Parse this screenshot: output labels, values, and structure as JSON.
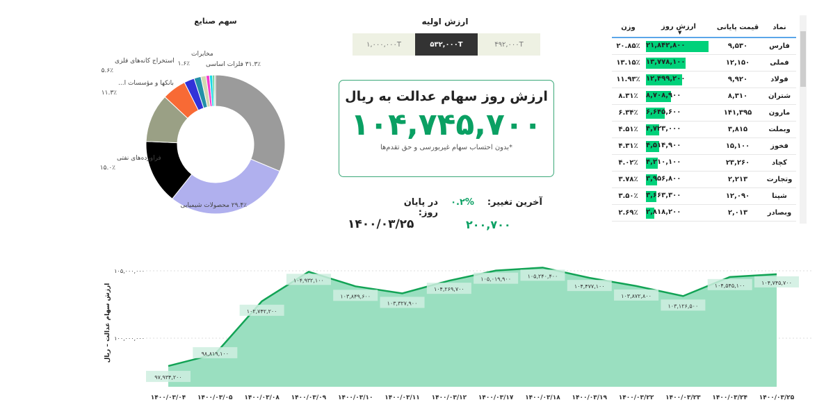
{
  "donut": {
    "title": "سهم صنایع",
    "slices": [
      {
        "label": "فلزات اساسی",
        "pct_label": "۳۱.۳٪",
        "value": 31.3,
        "color": "#9b9b9b"
      },
      {
        "label": "محصولات شیمیایی",
        "pct_label": "۲۹.۴٪",
        "value": 29.4,
        "color": "#b0b0ee"
      },
      {
        "label": "فراورده‌های نفتی",
        "pct_label": "۱۵.۰٪",
        "value": 15.0,
        "color": "#000000"
      },
      {
        "label": "بانکها و مؤسسات ا...",
        "pct_label": "۱۱.۳٪",
        "value": 11.3,
        "color": "#9aa085"
      },
      {
        "label": "استخراج کانه‌های فلزی",
        "pct_label": "۵.۶٪",
        "value": 5.6,
        "color": "#f86a35"
      },
      {
        "value": 2.4,
        "color": "#3232d8"
      },
      {
        "label": "مخابرات",
        "pct_label": "۱.۶٪",
        "value": 1.6,
        "color": "#2390a8"
      },
      {
        "value": 1.2,
        "color": "#d2d8b0"
      },
      {
        "value": 0.8,
        "color": "#f33ad0"
      },
      {
        "value": 0.7,
        "color": "#19d6e6"
      },
      {
        "value": 0.4,
        "color": "#2bc56e"
      },
      {
        "value": 0.3,
        "color": "#aaaaaa"
      }
    ]
  },
  "initial": {
    "title": "ارزش اولیه",
    "options": [
      "۴۹۲,۰۰۰T",
      "۵۳۲,۰۰۰T",
      "۱,۰۰۰,۰۰۰T"
    ],
    "selected": 1
  },
  "card": {
    "title": "ارزش روز سهام عدالت به ریال",
    "value": "۱۰۴,۷۴۵,۷۰۰",
    "note": "*بدون احتساب سهام غیربورسی و حق تقدم‌ها"
  },
  "info": {
    "change_label": "آخرین تغییر:",
    "change_pct": "۰.۲%",
    "change_value": "۲۰۰,۷۰۰",
    "date_label": "در پایان روز:",
    "date": "۱۴۰۰/۰۳/۲۵"
  },
  "table": {
    "headers": [
      "نماد",
      "قیمت پایانی",
      "ارزش روز",
      "وزن"
    ],
    "sort_column": "ارزش روز",
    "rows": [
      [
        "فارس",
        "۹,۵۳۰",
        "۲۱,۸۴۲,۸۰۰",
        "۲۰.۸۵٪",
        21842800
      ],
      [
        "فملی",
        "۱۲,۱۵۰",
        "۱۳,۷۷۸,۱۰۰",
        "۱۳.۱۵٪",
        13778100
      ],
      [
        "فولاد",
        "۹,۹۲۰",
        "۱۲,۴۹۹,۲۰۰",
        "۱۱.۹۳٪",
        12499200
      ],
      [
        "شتران",
        "۸,۳۱۰",
        "۸,۷۰۸,۹۰۰",
        "۸.۳۱٪",
        8708900
      ],
      [
        "مارون",
        "۱۴۱,۳۹۵",
        "۶,۶۴۵,۶۰۰",
        "۶.۳۴٪",
        6645600
      ],
      [
        "وبملت",
        "۳,۸۱۵",
        "۴,۷۲۳,۰۰۰",
        "۴.۵۱٪",
        4723000
      ],
      [
        "فخوز",
        "۱۵,۱۰۰",
        "۴,۵۱۴,۹۰۰",
        "۴.۳۱٪",
        4514900
      ],
      [
        "کچاد",
        "۲۳,۲۶۰",
        "۴,۲۱۰,۱۰۰",
        "۴.۰۲٪",
        4210100
      ],
      [
        "وتجارت",
        "۲,۲۱۳",
        "۳,۹۵۶,۸۰۰",
        "۳.۷۸٪",
        3956800
      ],
      [
        "شپنا",
        "۱۲,۰۹۰",
        "۳,۶۶۳,۳۰۰",
        "۳.۵۰٪",
        3663300
      ],
      [
        "وبصادر",
        "۲,۰۱۳",
        "۲,۸۱۸,۲۰۰",
        "۲.۶۹٪",
        2818200
      ]
    ]
  },
  "chart_data": {
    "type": "area",
    "ylabel": "ارزش سهام عدالت – ریال",
    "y_ticks": [
      {
        "value": 100000000,
        "label": "۱۰۰,۰۰۰,۰۰۰"
      },
      {
        "value": 105000000,
        "label": "۱۰۵,۰۰۰,۰۰۰"
      }
    ],
    "grid": true,
    "color": "#12a355",
    "fill": "#9adfc0",
    "x": [
      "۱۴۰۰/۰۳/۰۴",
      "۱۴۰۰/۰۳/۰۵",
      "۱۴۰۰/۰۳/۰۸",
      "۱۴۰۰/۰۳/۰۹",
      "۱۴۰۰/۰۳/۱۰",
      "۱۴۰۰/۰۳/۱۱",
      "۱۴۰۰/۰۳/۱۲",
      "۱۴۰۰/۰۳/۱۷",
      "۱۴۰۰/۰۳/۱۸",
      "۱۴۰۰/۰۳/۱۹",
      "۱۴۰۰/۰۳/۲۲",
      "۱۴۰۰/۰۳/۲۳",
      "۱۴۰۰/۰۳/۲۴",
      "۱۴۰۰/۰۳/۲۵"
    ],
    "values": [
      97934200,
      98819100,
      102742200,
      104932100,
      103849600,
      103327900,
      104269700,
      105019900,
      105240400,
      104477100,
      103872800,
      103126500,
      104545100,
      104745700
    ],
    "labels": [
      "۹۷,۹۳۴,۲۰۰",
      "۹۸,۸۱۹,۱۰۰",
      "۱۰۲,۷۴۲,۲۰۰",
      "۱۰۴,۹۳۲,۱۰۰",
      "۱۰۳,۸۴۹,۶۰۰",
      "۱۰۳,۳۲۷,۹۰۰",
      "۱۰۴,۲۶۹,۷۰۰",
      "۱۰۵,۰۱۹,۹۰۰",
      "۱۰۵,۲۴۰,۴۰۰",
      "۱۰۴,۴۷۷,۱۰۰",
      "۱۰۳,۸۷۲,۸۰۰",
      "۱۰۳,۱۲۶,۵۰۰",
      "۱۰۴,۵۴۵,۱۰۰",
      "۱۰۴,۷۴۵,۷۰۰"
    ]
  }
}
